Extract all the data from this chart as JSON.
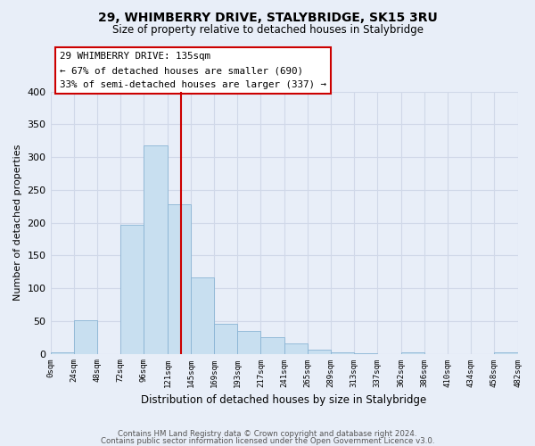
{
  "title": "29, WHIMBERRY DRIVE, STALYBRIDGE, SK15 3RU",
  "subtitle": "Size of property relative to detached houses in Stalybridge",
  "xlabel": "Distribution of detached houses by size in Stalybridge",
  "ylabel": "Number of detached properties",
  "bar_edges": [
    0,
    24,
    48,
    72,
    96,
    121,
    145,
    169,
    193,
    217,
    241,
    265,
    289,
    313,
    337,
    362,
    386,
    410,
    434,
    458,
    482
  ],
  "bar_heights": [
    2,
    51,
    0,
    196,
    318,
    228,
    116,
    46,
    35,
    25,
    16,
    6,
    2,
    1,
    0,
    2,
    0,
    0,
    0,
    2
  ],
  "bar_color": "#c8dff0",
  "bar_edge_color": "#8ab4d4",
  "vline_x": 135,
  "vline_color": "#cc0000",
  "ylim": [
    0,
    400
  ],
  "xlim": [
    0,
    482
  ],
  "xtick_labels": [
    "0sqm",
    "24sqm",
    "48sqm",
    "72sqm",
    "96sqm",
    "121sqm",
    "145sqm",
    "169sqm",
    "193sqm",
    "217sqm",
    "241sqm",
    "265sqm",
    "289sqm",
    "313sqm",
    "337sqm",
    "362sqm",
    "386sqm",
    "410sqm",
    "434sqm",
    "458sqm",
    "482sqm"
  ],
  "xtick_positions": [
    0,
    24,
    48,
    72,
    96,
    121,
    145,
    169,
    193,
    217,
    241,
    265,
    289,
    313,
    337,
    362,
    386,
    410,
    434,
    458,
    482
  ],
  "annotation_title": "29 WHIMBERRY DRIVE: 135sqm",
  "annotation_line1": "← 67% of detached houses are smaller (690)",
  "annotation_line2": "33% of semi-detached houses are larger (337) →",
  "annotation_box_color": "#ffffff",
  "annotation_border_color": "#cc0000",
  "grid_color": "#d0d8e8",
  "bg_color": "#e8eef8",
  "footnote1": "Contains HM Land Registry data © Crown copyright and database right 2024.",
  "footnote2": "Contains public sector information licensed under the Open Government Licence v3.0."
}
